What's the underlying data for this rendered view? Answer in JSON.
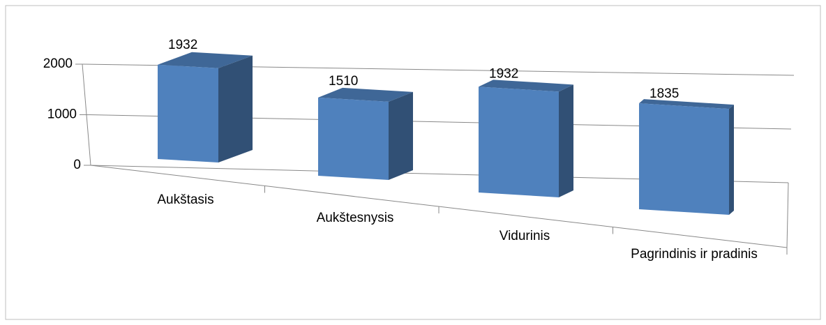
{
  "chart_data": {
    "type": "bar3d",
    "categories": [
      "Aukštasis",
      "Aukštesnysis",
      "Vidurinis",
      "Pagrindinis ir pradinis"
    ],
    "values": [
      1932,
      1510,
      1932,
      1835
    ],
    "color": "#4f81bd",
    "ylim": [
      0,
      2000
    ],
    "yticks": [
      0,
      1000,
      2000
    ],
    "grid": true
  }
}
